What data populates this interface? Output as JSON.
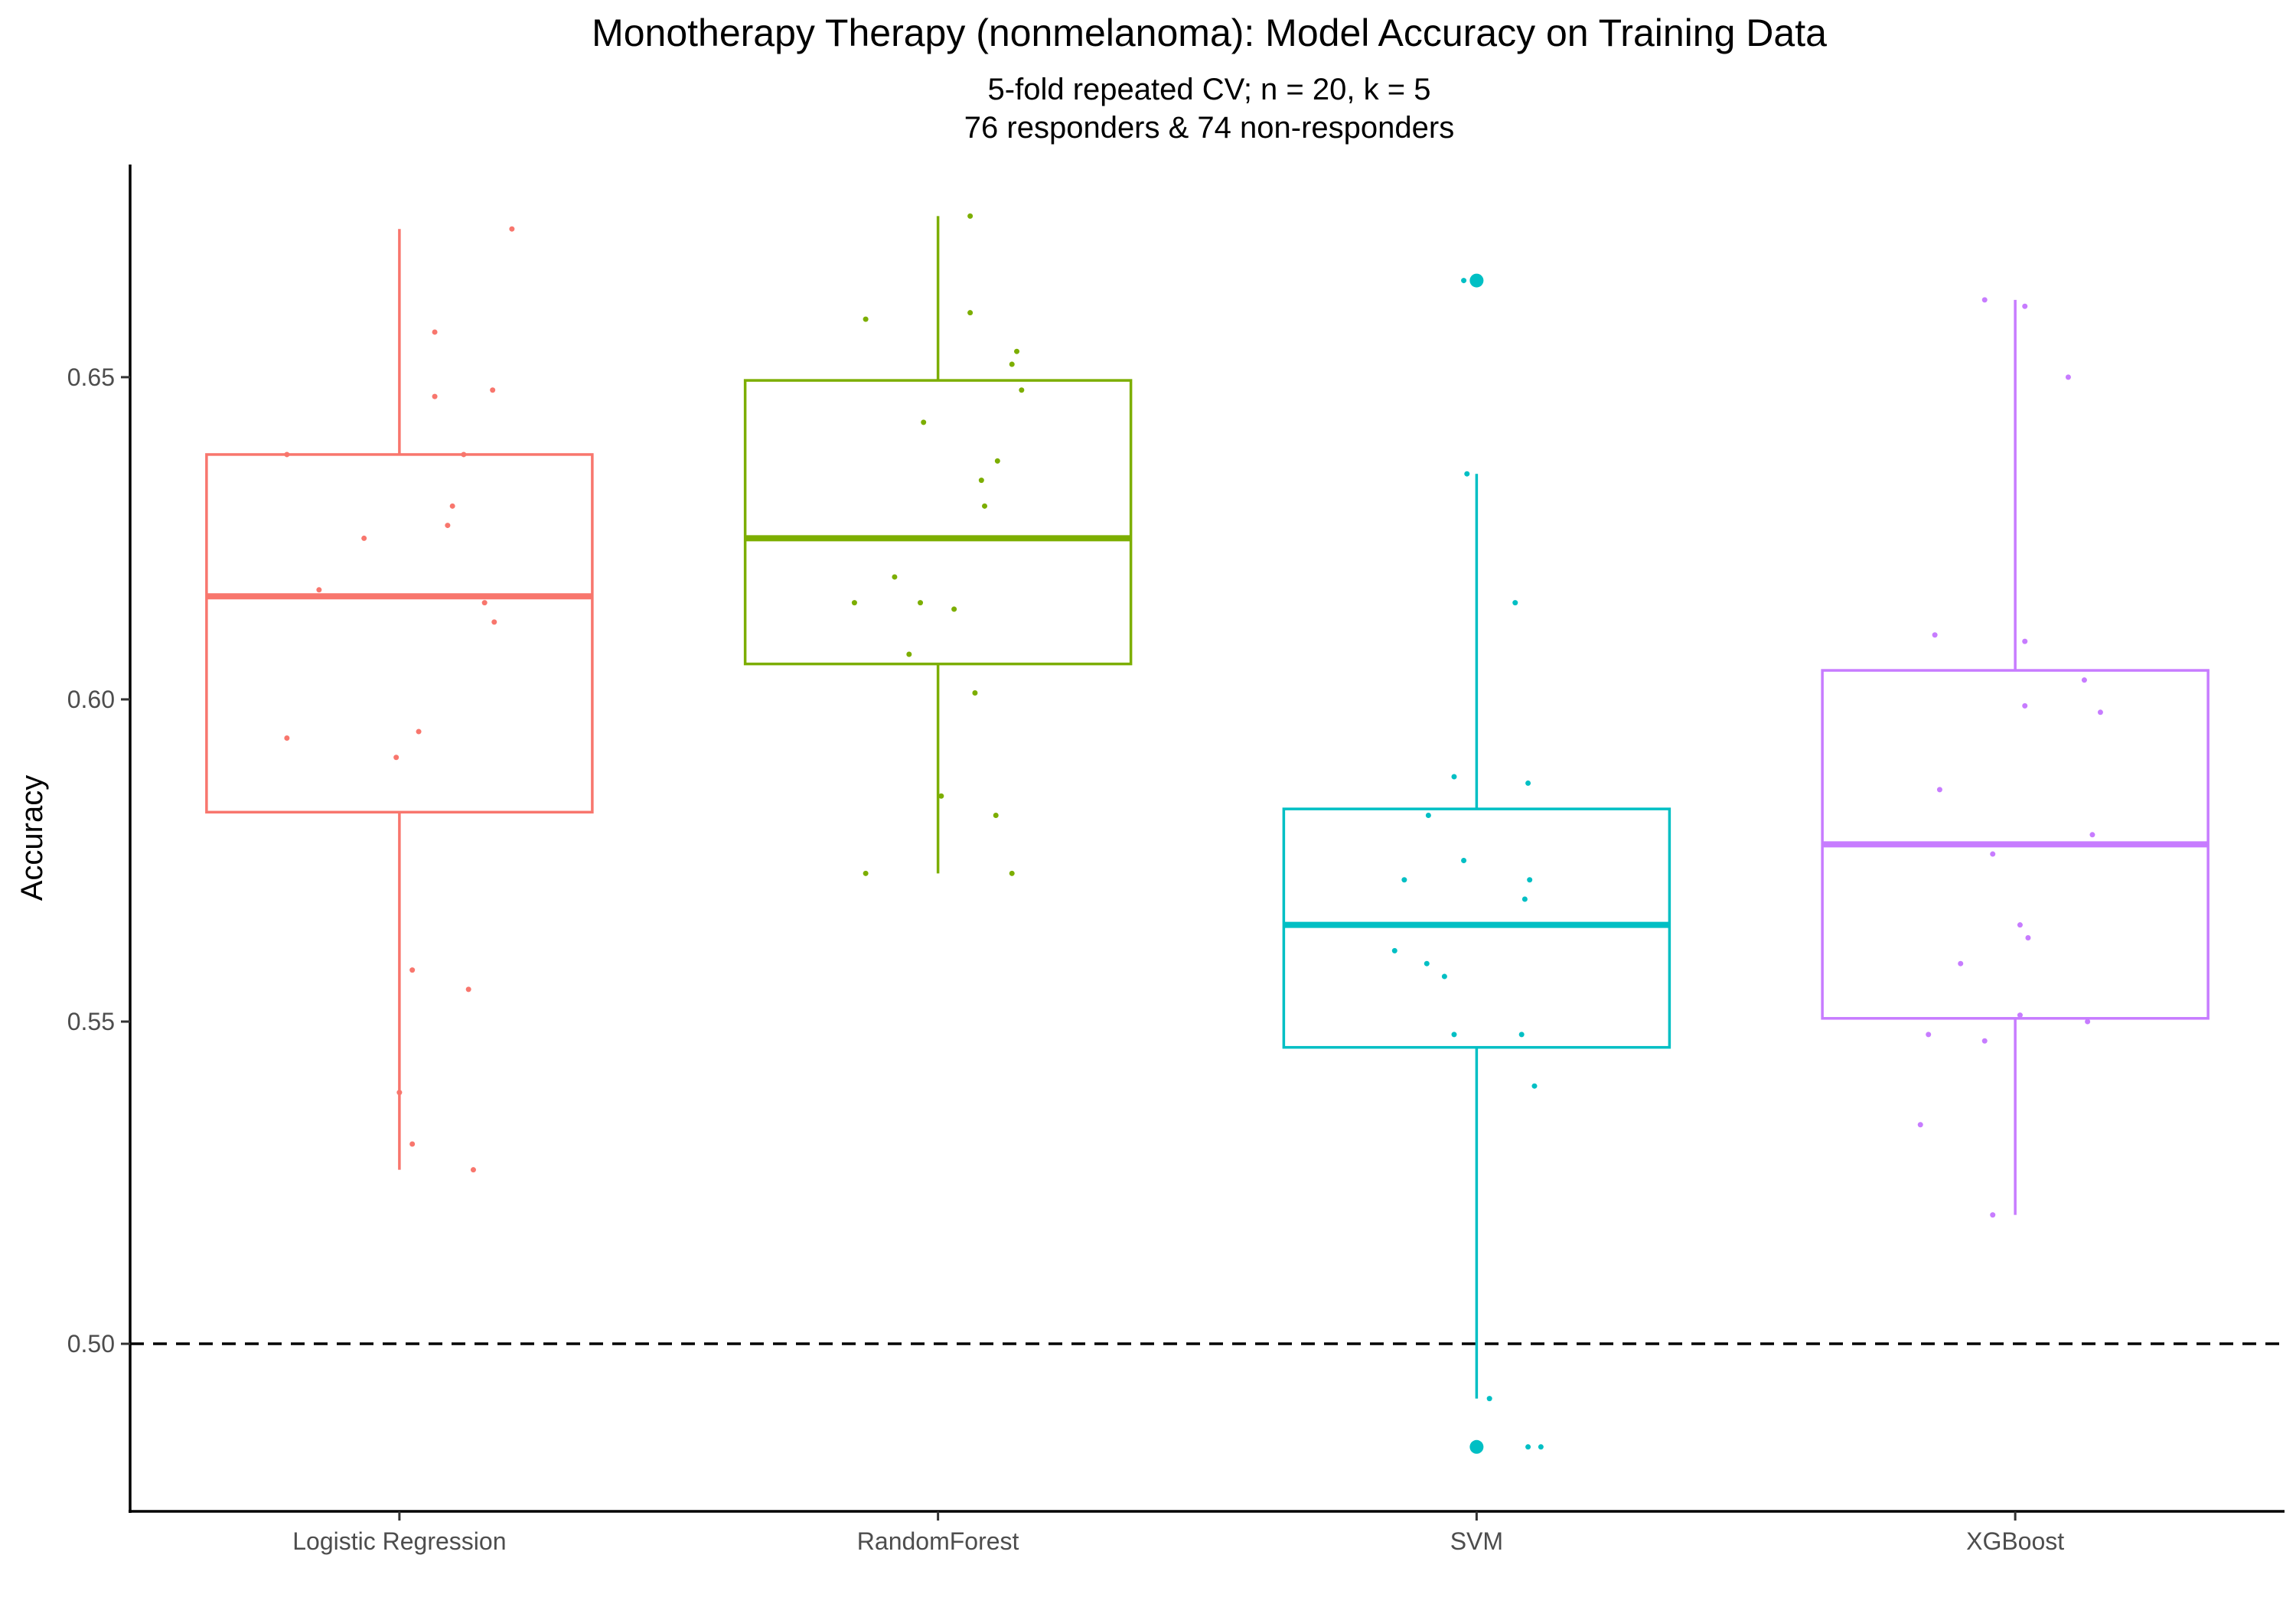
{
  "chart_data": {
    "type": "box",
    "title": "Monotherapy Therapy (nonmelanoma): Model Accuracy on Training Data",
    "subtitle_lines": [
      "5-fold repeated CV; n = 20, k = 5",
      "76 responders & 74 non-responders"
    ],
    "xlabel": "",
    "ylabel": "Accuracy",
    "ylim": [
      0.474,
      0.683
    ],
    "y_ticks": [
      0.5,
      0.55,
      0.6,
      0.65
    ],
    "y_tick_labels": [
      "0.50",
      "0.55",
      "0.60",
      "0.65"
    ],
    "reference_line": {
      "y": 0.5,
      "style": "dashed"
    },
    "grid": false,
    "legend": "none",
    "categories": [
      "Logistic Regression",
      "RandomForest",
      "SVM",
      "XGBoost"
    ],
    "series": [
      {
        "category": "Logistic Regression",
        "color": "#F8766D",
        "box": {
          "min": 0.527,
          "q1": 0.5825,
          "median": 0.616,
          "q3": 0.638,
          "max": 0.673
        },
        "outliers": [],
        "points": [
          {
            "j": 0.7,
            "y": 0.673
          },
          {
            "j": 0.22,
            "y": 0.657
          },
          {
            "j": 0.58,
            "y": 0.648
          },
          {
            "j": 0.22,
            "y": 0.647
          },
          {
            "j": -0.7,
            "y": 0.638
          },
          {
            "j": 0.4,
            "y": 0.638
          },
          {
            "j": 0.33,
            "y": 0.63
          },
          {
            "j": 0.3,
            "y": 0.627
          },
          {
            "j": -0.22,
            "y": 0.625
          },
          {
            "j": -0.5,
            "y": 0.617
          },
          {
            "j": 0.53,
            "y": 0.615
          },
          {
            "j": 0.59,
            "y": 0.612
          },
          {
            "j": 0.12,
            "y": 0.595
          },
          {
            "j": -0.7,
            "y": 0.594
          },
          {
            "j": -0.02,
            "y": 0.591
          },
          {
            "j": 0.08,
            "y": 0.558
          },
          {
            "j": 0.43,
            "y": 0.555
          },
          {
            "j": 0.0,
            "y": 0.539
          },
          {
            "j": 0.08,
            "y": 0.531
          },
          {
            "j": 0.46,
            "y": 0.527
          }
        ]
      },
      {
        "category": "RandomForest",
        "color": "#7CAE00",
        "box": {
          "min": 0.573,
          "q1": 0.6055,
          "median": 0.625,
          "q3": 0.6495,
          "max": 0.675
        },
        "outliers": [],
        "points": [
          {
            "j": 0.2,
            "y": 0.675
          },
          {
            "j": 0.2,
            "y": 0.66
          },
          {
            "j": -0.45,
            "y": 0.659
          },
          {
            "j": 0.49,
            "y": 0.654
          },
          {
            "j": 0.46,
            "y": 0.652
          },
          {
            "j": 0.52,
            "y": 0.648
          },
          {
            "j": -0.09,
            "y": 0.643
          },
          {
            "j": 0.37,
            "y": 0.637
          },
          {
            "j": 0.27,
            "y": 0.634
          },
          {
            "j": 0.29,
            "y": 0.63
          },
          {
            "j": -0.27,
            "y": 0.619
          },
          {
            "j": -0.52,
            "y": 0.615
          },
          {
            "j": -0.11,
            "y": 0.615
          },
          {
            "j": 0.1,
            "y": 0.614
          },
          {
            "j": -0.18,
            "y": 0.607
          },
          {
            "j": 0.23,
            "y": 0.601
          },
          {
            "j": 0.02,
            "y": 0.585
          },
          {
            "j": 0.36,
            "y": 0.582
          },
          {
            "j": 0.46,
            "y": 0.573
          },
          {
            "j": -0.45,
            "y": 0.573
          }
        ]
      },
      {
        "category": "SVM",
        "color": "#00BFC4",
        "box": {
          "min": 0.4915,
          "q1": 0.546,
          "median": 0.565,
          "q3": 0.583,
          "max": 0.635
        },
        "outliers": [
          0.665,
          0.484
        ],
        "points": [
          {
            "j": -0.08,
            "y": 0.665
          },
          {
            "j": -0.06,
            "y": 0.635
          },
          {
            "j": 0.24,
            "y": 0.615
          },
          {
            "j": -0.14,
            "y": 0.588
          },
          {
            "j": 0.32,
            "y": 0.587
          },
          {
            "j": -0.3,
            "y": 0.582
          },
          {
            "j": -0.08,
            "y": 0.575
          },
          {
            "j": -0.45,
            "y": 0.572
          },
          {
            "j": 0.33,
            "y": 0.572
          },
          {
            "j": 0.3,
            "y": 0.569
          },
          {
            "j": -0.51,
            "y": 0.561
          },
          {
            "j": -0.31,
            "y": 0.559
          },
          {
            "j": -0.2,
            "y": 0.557
          },
          {
            "j": -0.14,
            "y": 0.548
          },
          {
            "j": 0.28,
            "y": 0.548
          },
          {
            "j": 0.36,
            "y": 0.54
          },
          {
            "j": 0.08,
            "y": 0.4915
          },
          {
            "j": 0.32,
            "y": 0.484
          },
          {
            "j": 0.4,
            "y": 0.484
          },
          {
            "j": 0.0,
            "y": 0.484
          }
        ]
      },
      {
        "category": "XGBoost",
        "color": "#C77CFF",
        "box": {
          "min": 0.52,
          "q1": 0.5505,
          "median": 0.5775,
          "q3": 0.6045,
          "max": 0.662
        },
        "outliers": [],
        "points": [
          {
            "j": -0.19,
            "y": 0.662
          },
          {
            "j": 0.06,
            "y": 0.661
          },
          {
            "j": 0.33,
            "y": 0.65
          },
          {
            "j": -0.5,
            "y": 0.61
          },
          {
            "j": 0.06,
            "y": 0.609
          },
          {
            "j": 0.43,
            "y": 0.603
          },
          {
            "j": 0.06,
            "y": 0.599
          },
          {
            "j": 0.53,
            "y": 0.598
          },
          {
            "j": -0.47,
            "y": 0.586
          },
          {
            "j": 0.48,
            "y": 0.579
          },
          {
            "j": -0.14,
            "y": 0.576
          },
          {
            "j": 0.03,
            "y": 0.565
          },
          {
            "j": 0.08,
            "y": 0.563
          },
          {
            "j": -0.34,
            "y": 0.559
          },
          {
            "j": 0.03,
            "y": 0.551
          },
          {
            "j": 0.45,
            "y": 0.55
          },
          {
            "j": -0.54,
            "y": 0.548
          },
          {
            "j": -0.19,
            "y": 0.547
          },
          {
            "j": -0.59,
            "y": 0.534
          },
          {
            "j": -0.14,
            "y": 0.52
          }
        ]
      }
    ]
  }
}
